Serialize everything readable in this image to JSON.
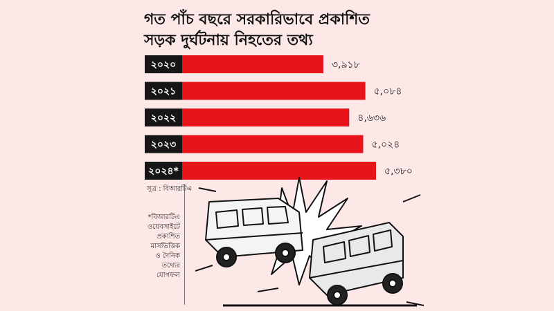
{
  "title": {
    "line1": "গত পাঁচ বছরে সরকারিভাবে প্রকাশিত",
    "line2": "সড়ক দুর্ঘটনায় নিহতের তথ্য"
  },
  "chart_data": {
    "type": "bar",
    "orientation": "horizontal",
    "categories": [
      "২০২০",
      "২০২১",
      "২০২২",
      "২০২৩",
      "২০২৪*"
    ],
    "values": [
      3918,
      5084,
      4636,
      5024,
      5380
    ],
    "value_labels": [
      "৩,৯১৮",
      "৫,০৮৪",
      "৪,৬৩৬",
      "৫,০২৪",
      "৫,৩৮০"
    ],
    "bar_color": "#e8141c",
    "category_label_bg": "#161616",
    "grid": false
  },
  "source": "সূত্র : বিআরটিএ",
  "footnote": "*বিআরটিএ\nওয়েবসাইটে\nপ্রকাশিত\nমাসভিত্তিক\nও দৈনিক\nতথ্যের\nযোগফল",
  "colors": {
    "background": "#fde8e8",
    "bar": "#e8141c",
    "label_bg": "#161616"
  }
}
